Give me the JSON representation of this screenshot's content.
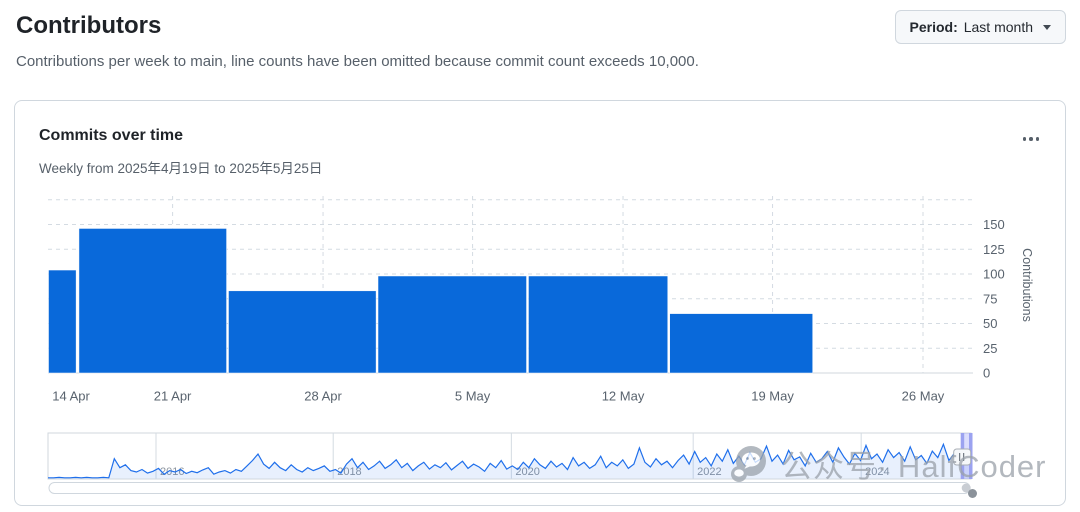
{
  "page": {
    "title": "Contributors",
    "subtitle": "Contributions per week to main, line counts have been omitted because commit count exceeds 10,000.",
    "period_button": {
      "label_prefix": "Period:",
      "value": "Last month"
    }
  },
  "card": {
    "title": "Commits over time",
    "subtitle": "Weekly from 2025年4月19日 to 2025年5月25日",
    "menu_icon": "kebab-horizontal-icon"
  },
  "watermark": {
    "icon": "wechat-icon",
    "text": "公众号· HalfCoder"
  },
  "colors": {
    "bar": "#0969da",
    "brush_line": "#1f6feb",
    "brush_fill": "rgba(31,111,235,0.10)",
    "grid": "#d4dbe2",
    "axis_text": "#59636e",
    "border": "#d0d7de",
    "selection_band": "rgba(110,118,246,0.25)",
    "selection_handle": "#9ba2f0",
    "title_text": "#1f2328",
    "button_bg": "#f6f8fa"
  },
  "chart_data": [
    {
      "type": "bar",
      "title": "Commits over time",
      "ylabel": "Contributions",
      "ylim": [
        0,
        175
      ],
      "yticks": [
        0,
        25,
        50,
        75,
        100,
        125,
        150
      ],
      "ytick_extra_grid": 175,
      "grid": "dashed",
      "xticks": [
        {
          "label": "14 Apr",
          "x": 0.025,
          "grid": false
        },
        {
          "label": "21 Apr",
          "x": 0.135,
          "grid": true
        },
        {
          "label": "28 Apr",
          "x": 0.298,
          "grid": true
        },
        {
          "label": "5 May",
          "x": 0.46,
          "grid": true
        },
        {
          "label": "12 May",
          "x": 0.623,
          "grid": true
        },
        {
          "label": "19 May",
          "x": 0.785,
          "grid": true
        },
        {
          "label": "26 May",
          "x": 0.948,
          "grid": true
        }
      ],
      "bars": [
        {
          "week": "14 Apr",
          "x0": 0.0,
          "x1": 0.031,
          "value": 104
        },
        {
          "week": "21 Apr",
          "x0": 0.033,
          "x1": 0.194,
          "value": 146
        },
        {
          "week": "28 Apr",
          "x0": 0.195,
          "x1": 0.356,
          "value": 83
        },
        {
          "week": "5 May",
          "x0": 0.357,
          "x1": 0.519,
          "value": 98
        },
        {
          "week": "12 May",
          "x0": 0.52,
          "x1": 0.672,
          "value": 98
        },
        {
          "week": "19 May",
          "x0": 0.673,
          "x1": 0.829,
          "value": 60
        }
      ]
    },
    {
      "type": "line",
      "role": "brush-navigator",
      "x_range": [
        "2015",
        "2025"
      ],
      "year_ticks": [
        {
          "label": "2016",
          "x": 0.117
        },
        {
          "label": "2018",
          "x": 0.309
        },
        {
          "label": "2020",
          "x": 0.502
        },
        {
          "label": "2022",
          "x": 0.699
        },
        {
          "label": "2024",
          "x": 0.881
        }
      ],
      "selection": {
        "x0": 0.991,
        "x1": 1.0
      },
      "values": [
        2,
        2,
        3,
        2,
        2,
        3,
        2,
        3,
        2,
        2,
        3,
        2,
        55,
        30,
        38,
        22,
        18,
        25,
        15,
        20,
        28,
        12,
        22,
        18,
        25,
        14,
        20,
        16,
        24,
        30,
        12,
        18,
        22,
        15,
        25,
        20,
        35,
        50,
        68,
        40,
        28,
        45,
        30,
        22,
        38,
        25,
        18,
        30,
        22,
        28,
        35,
        20,
        25,
        15,
        40,
        55,
        30,
        45,
        25,
        35,
        48,
        28,
        38,
        52,
        30,
        42,
        22,
        35,
        45,
        26,
        38,
        30,
        44,
        24,
        36,
        48,
        28,
        40,
        32,
        20,
        42,
        30,
        50,
        26,
        35,
        25,
        45,
        30,
        55,
        38,
        28,
        48,
        32,
        42,
        25,
        58,
        35,
        45,
        28,
        38,
        62,
        30,
        45,
        35,
        52,
        28,
        40,
        85,
        45,
        32,
        55,
        38,
        48,
        30,
        50,
        65,
        40,
        75,
        45,
        58,
        35,
        68,
        48,
        80,
        42,
        62,
        38,
        72,
        45,
        55,
        90,
        48,
        65,
        40,
        78,
        52,
        60,
        35,
        70,
        45,
        55,
        75,
        45,
        85,
        60,
        40,
        70,
        50,
        92,
        55,
        68,
        45,
        80,
        58,
        72,
        48,
        88,
        52,
        64,
        42,
        76,
        58,
        95,
        50,
        70,
        45,
        60,
        38
      ]
    }
  ]
}
